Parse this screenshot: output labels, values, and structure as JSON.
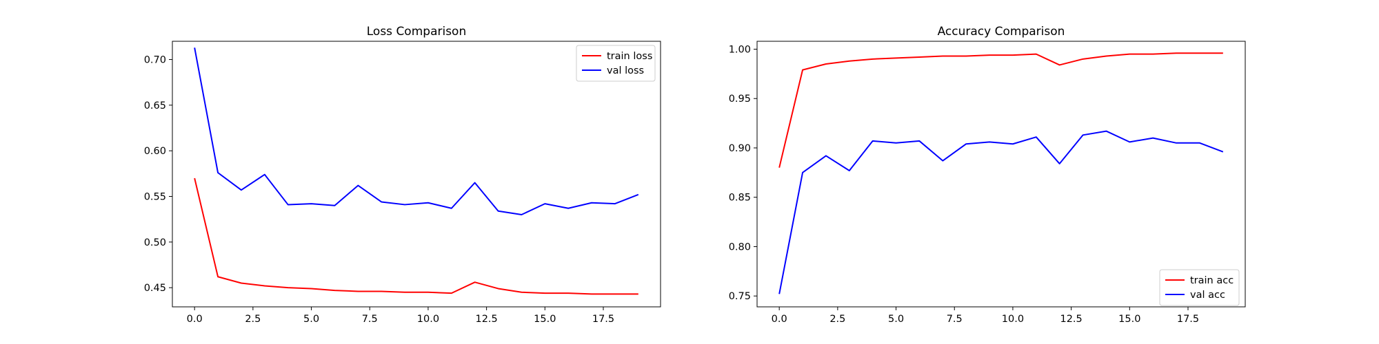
{
  "colors": {
    "train": "#ff0000",
    "val": "#0000ff"
  },
  "chart_data": [
    {
      "type": "line",
      "title": "Loss Comparison",
      "xlabel": "",
      "ylabel": "",
      "xlim": [
        -0.95,
        19.95
      ],
      "ylim": [
        0.429,
        0.72
      ],
      "xticks": [
        0.0,
        2.5,
        5.0,
        7.5,
        10.0,
        12.5,
        15.0,
        17.5
      ],
      "xtick_labels": [
        "0.0",
        "2.5",
        "5.0",
        "7.5",
        "10.0",
        "12.5",
        "15.0",
        "17.5"
      ],
      "yticks": [
        0.45,
        0.5,
        0.55,
        0.6,
        0.65,
        0.7
      ],
      "ytick_labels": [
        "0.45",
        "0.50",
        "0.55",
        "0.60",
        "0.65",
        "0.70"
      ],
      "legend_position": "top-right",
      "grid": false,
      "x": [
        0,
        1,
        2,
        3,
        4,
        5,
        6,
        7,
        8,
        9,
        10,
        11,
        12,
        13,
        14,
        15,
        16,
        17,
        18,
        19
      ],
      "series": [
        {
          "name": "train loss",
          "color_key": "train",
          "values": [
            0.57,
            0.462,
            0.455,
            0.452,
            0.45,
            0.449,
            0.447,
            0.446,
            0.446,
            0.445,
            0.445,
            0.444,
            0.456,
            0.449,
            0.445,
            0.444,
            0.444,
            0.443,
            0.443,
            0.443
          ]
        },
        {
          "name": "val loss",
          "color_key": "val",
          "values": [
            0.713,
            0.576,
            0.557,
            0.574,
            0.541,
            0.542,
            0.54,
            0.562,
            0.544,
            0.541,
            0.543,
            0.537,
            0.565,
            0.534,
            0.53,
            0.542,
            0.537,
            0.543,
            0.542,
            0.552
          ]
        }
      ]
    },
    {
      "type": "line",
      "title": "Accuracy Comparison",
      "xlabel": "",
      "ylabel": "",
      "xlim": [
        -0.95,
        19.95
      ],
      "ylim": [
        0.739,
        1.008
      ],
      "xticks": [
        0.0,
        2.5,
        5.0,
        7.5,
        10.0,
        12.5,
        15.0,
        17.5
      ],
      "xtick_labels": [
        "0.0",
        "2.5",
        "5.0",
        "7.5",
        "10.0",
        "12.5",
        "15.0",
        "17.5"
      ],
      "yticks": [
        0.75,
        0.8,
        0.85,
        0.9,
        0.95,
        1.0
      ],
      "ytick_labels": [
        "0.75",
        "0.80",
        "0.85",
        "0.90",
        "0.95",
        "1.00"
      ],
      "legend_position": "bottom-right",
      "grid": false,
      "x": [
        0,
        1,
        2,
        3,
        4,
        5,
        6,
        7,
        8,
        9,
        10,
        11,
        12,
        13,
        14,
        15,
        16,
        17,
        18,
        19
      ],
      "series": [
        {
          "name": "train acc",
          "color_key": "train",
          "values": [
            0.88,
            0.979,
            0.985,
            0.988,
            0.99,
            0.991,
            0.992,
            0.993,
            0.993,
            0.994,
            0.994,
            0.995,
            0.984,
            0.99,
            0.993,
            0.995,
            0.995,
            0.996,
            0.996,
            0.996
          ]
        },
        {
          "name": "val acc",
          "color_key": "val",
          "values": [
            0.752,
            0.875,
            0.892,
            0.877,
            0.907,
            0.905,
            0.907,
            0.887,
            0.904,
            0.906,
            0.904,
            0.911,
            0.884,
            0.913,
            0.917,
            0.906,
            0.91,
            0.905,
            0.905,
            0.896
          ]
        }
      ]
    }
  ]
}
